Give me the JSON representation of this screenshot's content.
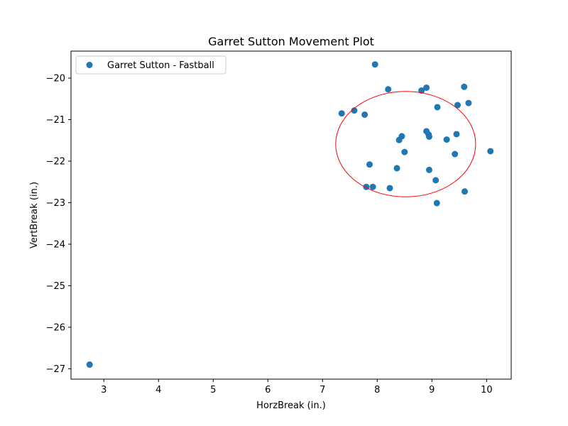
{
  "chart_data": {
    "type": "scatter",
    "title": "Garret Sutton Movement Plot",
    "xlabel": "HorzBreak (in.)",
    "ylabel": "VertBreak (in.)",
    "xlim": [
      2.4,
      10.45
    ],
    "ylim": [
      -27.25,
      -19.35
    ],
    "xticks": [
      3,
      4,
      5,
      6,
      7,
      8,
      9,
      10
    ],
    "yticks": [
      -27,
      -26,
      -25,
      -24,
      -23,
      -22,
      -21,
      -20
    ],
    "ytick_labels": [
      "−27",
      "−26",
      "−25",
      "−24",
      "−23",
      "−22",
      "−21",
      "−20"
    ],
    "grid": false,
    "legend_position": "top-left",
    "series": [
      {
        "name": "Garret Sutton - Fastball",
        "color": "#1f77b4",
        "x": [
          7.96,
          9.59,
          8.9,
          8.2,
          8.81,
          7.35,
          7.58,
          7.77,
          9.1,
          9.47,
          9.67,
          8.9,
          8.45,
          8.4,
          8.94,
          8.95,
          9.27,
          9.45,
          8.5,
          9.42,
          10.07,
          7.86,
          8.36,
          8.95,
          9.07,
          7.8,
          7.92,
          8.23,
          9.6,
          9.09,
          2.74
        ],
        "y": [
          -19.67,
          -20.21,
          -20.23,
          -20.27,
          -20.3,
          -20.85,
          -20.78,
          -20.88,
          -20.7,
          -20.65,
          -20.6,
          -21.28,
          -21.4,
          -21.49,
          -21.36,
          -21.41,
          -21.48,
          -21.35,
          -21.78,
          -21.83,
          -21.76,
          -22.08,
          -22.17,
          -22.21,
          -22.46,
          -22.62,
          -22.62,
          -22.65,
          -22.73,
          -23.01,
          -26.9
        ]
      }
    ],
    "annotations": [
      {
        "type": "ellipse",
        "color": "#ff0000",
        "center": [
          8.52,
          -21.59
        ],
        "radius_x": 1.28,
        "radius_y": 1.27
      }
    ]
  }
}
